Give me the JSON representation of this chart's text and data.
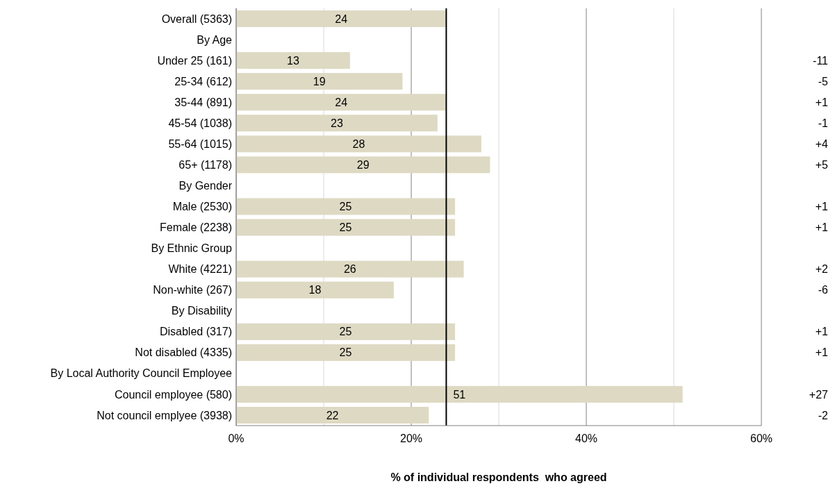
{
  "chart_data": {
    "type": "bar",
    "orientation": "horizontal",
    "xlabel": "% of individual respondents  who agreed",
    "categories": [
      "Overall (5363)",
      "By Age",
      "Under 25 (161)",
      "25-34 (612)",
      "35-44 (891)",
      "45-54 (1038)",
      "55-64 (1015)",
      "65+ (1178)",
      "By Gender",
      "Male (2530)",
      "Female (2238)",
      "By Ethnic Group",
      "White (4221)",
      "Non-white (267)",
      "By Disability",
      "Disabled (317)",
      "Not disabled (4335)",
      "By Local Authority Council Employee",
      "Council employee (580)",
      "Not council emplyee (3938)"
    ],
    "values": [
      24,
      null,
      13,
      19,
      24,
      23,
      28,
      29,
      null,
      25,
      25,
      null,
      26,
      18,
      null,
      25,
      25,
      null,
      51,
      22
    ],
    "color": "#ddd9c3",
    "data_labels": true,
    "xlim": [
      0,
      60
    ],
    "xticks": [
      {
        "value": 0,
        "label": "0%"
      },
      {
        "value": 10,
        "label": null
      },
      {
        "value": 20,
        "label": "20%"
      },
      {
        "value": 30,
        "label": null
      },
      {
        "value": 40,
        "label": "40%"
      },
      {
        "value": 50,
        "label": null
      },
      {
        "value": 60,
        "label": "60%"
      }
    ],
    "grid": "x",
    "ref_lines": [
      {
        "axis": "x",
        "value": 24,
        "color": "#000000"
      }
    ],
    "annotations": [
      "-11",
      "-5",
      "+1",
      "-1",
      "+4",
      "+5",
      "+1",
      "+1",
      "+2",
      "-6",
      "+1",
      "+1",
      "+27",
      "-2"
    ]
  }
}
